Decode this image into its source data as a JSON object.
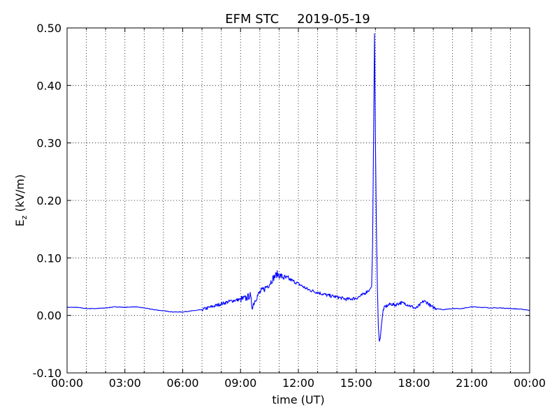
{
  "chart_data": {
    "type": "line",
    "title": "EFM STC",
    "date": "2019-05-19",
    "xlabel": "time (UT)",
    "ylabel_main": "E",
    "ylabel_sub": "z",
    "ylabel_unit": " (kV/m)",
    "xlim": [
      0,
      24
    ],
    "ylim": [
      -0.1,
      0.5
    ],
    "x_ticks": [
      0,
      3,
      6,
      9,
      12,
      15,
      18,
      21,
      24
    ],
    "x_tick_labels": [
      "00:00",
      "03:00",
      "06:00",
      "09:00",
      "12:00",
      "15:00",
      "18:00",
      "21:00",
      "00:00"
    ],
    "y_ticks": [
      -0.1,
      0.0,
      0.1,
      0.2,
      0.3,
      0.4,
      0.5
    ],
    "y_tick_labels": [
      "-0.10",
      "0.00",
      "0.10",
      "0.20",
      "0.30",
      "0.40",
      "0.50"
    ],
    "grid": true,
    "color": "#0000ff",
    "series": [
      {
        "x": [
          0,
          0.5,
          1.0,
          1.5,
          2.0,
          2.5,
          3.0,
          3.5,
          4.0,
          4.5,
          5.0,
          5.5,
          6.0,
          6.5,
          7.0,
          7.5,
          8.0,
          8.5,
          9.0,
          9.3,
          9.5,
          9.6,
          9.8,
          10.0,
          10.2,
          10.5,
          10.7,
          10.9,
          11.0,
          11.3,
          11.6,
          12.0,
          12.5,
          13.0,
          13.5,
          14.0,
          14.5,
          15.0,
          15.3,
          15.5,
          15.7,
          15.8,
          15.85,
          15.9,
          15.95,
          16.0,
          16.05,
          16.1,
          16.15,
          16.2,
          16.25,
          16.3,
          16.4,
          16.5,
          16.8,
          17.0,
          17.3,
          17.6,
          17.9,
          18.1,
          18.3,
          18.5,
          18.7,
          18.9,
          19.2,
          19.5,
          20.0,
          20.5,
          21.0,
          21.5,
          22.0,
          22.5,
          23.0,
          23.5,
          24.0
        ],
        "y": [
          0.014,
          0.014,
          0.012,
          0.012,
          0.013,
          0.015,
          0.014,
          0.015,
          0.013,
          0.01,
          0.008,
          0.006,
          0.006,
          0.008,
          0.01,
          0.015,
          0.02,
          0.025,
          0.028,
          0.03,
          0.035,
          0.015,
          0.03,
          0.04,
          0.045,
          0.055,
          0.065,
          0.072,
          0.07,
          0.065,
          0.062,
          0.055,
          0.045,
          0.04,
          0.035,
          0.032,
          0.028,
          0.03,
          0.035,
          0.04,
          0.045,
          0.05,
          0.12,
          0.3,
          0.49,
          0.3,
          0.15,
          0.05,
          -0.02,
          -0.045,
          -0.04,
          -0.02,
          0.01,
          0.015,
          0.02,
          0.018,
          0.022,
          0.02,
          0.015,
          0.012,
          0.018,
          0.025,
          0.022,
          0.015,
          0.012,
          0.01,
          0.012,
          0.012,
          0.015,
          0.014,
          0.013,
          0.013,
          0.012,
          0.011,
          0.009
        ]
      }
    ]
  }
}
